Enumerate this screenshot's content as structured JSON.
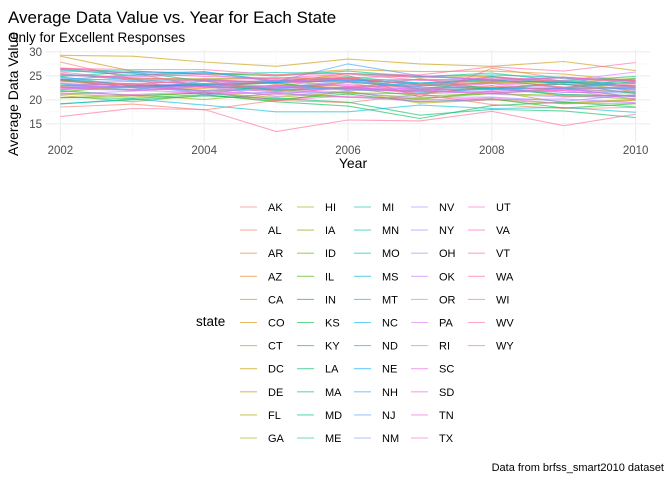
{
  "chart_data": {
    "type": "line",
    "title": "Average Data Value vs. Year for Each State",
    "subtitle": "Only for Excellent Responses",
    "xlabel": "Year",
    "ylabel": "Average Data Value",
    "caption": "Data from brfss_smart2010 dataset",
    "legend_title": "state",
    "legend_position": "bottom",
    "grid": true,
    "xlim": [
      2001.8,
      2010.2
    ],
    "ylim": [
      11.2,
      30.4
    ],
    "x_ticks": [
      2002,
      2004,
      2006,
      2008,
      2010
    ],
    "y_ticks": [
      15,
      20,
      25,
      30
    ],
    "x": [
      2002,
      2003,
      2004,
      2005,
      2006,
      2007,
      2008,
      2009,
      2010
    ],
    "series": [
      {
        "name": "AK",
        "color": "#f8766d",
        "values": [
          27.9,
          24.4,
          23.0,
          23.9,
          25.1,
          20.6,
          26.6,
          24.4,
          24.2
        ]
      },
      {
        "name": "AL",
        "color": "#f57962",
        "values": [
          18.5,
          19.1,
          17.9,
          19.9,
          19.4,
          21.2,
          19.0,
          18.2,
          18.4
        ]
      },
      {
        "name": "AR",
        "color": "#ef7f43",
        "values": [
          24.1,
          24.4,
          21.1,
          23.2,
          22.4,
          24.4,
          22.2,
          23.7,
          22.5
        ]
      },
      {
        "name": "AZ",
        "color": "#e8852a",
        "values": [
          24.1,
          23.3,
          21.8,
          22.4,
          23.8,
          22.2,
          23.0,
          20.7,
          21.0
        ]
      },
      {
        "name": "CA",
        "color": "#e18a00",
        "values": [
          22.7,
          22.0,
          22.4,
          23.0,
          22.9,
          22.9,
          23.5,
          23.2,
          23.0
        ]
      },
      {
        "name": "CO",
        "color": "#d89000",
        "values": [
          26.6,
          25.6,
          22.8,
          23.6,
          25.5,
          24.6,
          24.9,
          23.7,
          23.4
        ]
      },
      {
        "name": "CT",
        "color": "#cf9400",
        "values": [
          29.1,
          26.0,
          25.3,
          25.2,
          26.3,
          25.9,
          26.0,
          25.4,
          23.9
        ]
      },
      {
        "name": "DC",
        "color": "#c49a00",
        "values": [
          29.3,
          29.1,
          27.9,
          27.0,
          28.5,
          27.5,
          27.0,
          28.0,
          26.1
        ]
      },
      {
        "name": "DE",
        "color": "#b79f00",
        "values": [
          20.9,
          19.6,
          21.0,
          19.8,
          21.8,
          19.3,
          20.0,
          19.2,
          19.9
        ]
      },
      {
        "name": "FL",
        "color": "#aaa400",
        "values": [
          23.0,
          23.4,
          22.6,
          22.9,
          24.5,
          22.3,
          23.8,
          24.0,
          21.7
        ]
      },
      {
        "name": "GA",
        "color": "#9ca700",
        "values": [
          21.2,
          20.6,
          21.5,
          20.5,
          21.6,
          20.1,
          21.8,
          19.4,
          20.1
        ]
      },
      {
        "name": "HI",
        "color": "#8cab00",
        "values": [
          25.2,
          24.5,
          24.4,
          24.6,
          24.5,
          23.2,
          23.6,
          23.6,
          24.5
        ]
      },
      {
        "name": "IA",
        "color": "#7aae00",
        "values": [
          20.4,
          21.0,
          20.1,
          21.3,
          20.5,
          20.3,
          21.3,
          20.9,
          20.2
        ]
      },
      {
        "name": "ID",
        "color": "#64b200",
        "values": [
          24.0,
          22.6,
          23.4,
          22.1,
          21.4,
          21.3,
          22.6,
          21.1,
          20.9
        ]
      },
      {
        "name": "IL",
        "color": "#46b600",
        "values": [
          21.7,
          22.8,
          23.0,
          22.0,
          22.4,
          20.8,
          21.3,
          22.4,
          21.5
        ]
      },
      {
        "name": "IN",
        "color": "#00b81f",
        "values": [
          21.9,
          20.9,
          21.4,
          20.1,
          21.2,
          19.6,
          20.2,
          18.3,
          19.2
        ]
      },
      {
        "name": "KS",
        "color": "#00ba38",
        "values": [
          24.2,
          22.6,
          23.1,
          23.5,
          22.1,
          22.0,
          22.5,
          23.3,
          21.3
        ]
      },
      {
        "name": "KY",
        "color": "#00bc4f",
        "values": [
          20.5,
          20.3,
          21.1,
          19.6,
          18.7,
          16.1,
          18.8,
          19.5,
          18.5
        ]
      },
      {
        "name": "LA",
        "color": "#00be67",
        "values": [
          19.2,
          20.0,
          20.8,
          20.3,
          19.5,
          16.8,
          18.0,
          17.7,
          16.3
        ]
      },
      {
        "name": "MA",
        "color": "#00bf7d",
        "values": [
          26.3,
          25.1,
          25.6,
          25.0,
          26.0,
          24.8,
          25.6,
          23.9,
          24.9
        ]
      },
      {
        "name": "MD",
        "color": "#00c08b",
        "values": [
          24.9,
          25.8,
          23.9,
          23.6,
          24.8,
          23.5,
          24.3,
          22.5,
          23.8
        ]
      },
      {
        "name": "ME",
        "color": "#00c19f",
        "values": [
          24.8,
          22.9,
          23.2,
          24.2,
          24.1,
          24.2,
          24.1,
          23.6,
          23.5
        ]
      },
      {
        "name": "MI",
        "color": "#00c1af",
        "values": [
          22.6,
          22.8,
          22.0,
          22.7,
          22.4,
          23.5,
          22.5,
          22.4,
          20.6
        ]
      },
      {
        "name": "MN",
        "color": "#00c0bd",
        "values": [
          26.3,
          26.0,
          25.4,
          25.7,
          25.5,
          24.9,
          25.2,
          24.7,
          23.9
        ]
      },
      {
        "name": "MO",
        "color": "#00bfc4",
        "values": [
          23.3,
          22.1,
          23.9,
          22.0,
          22.6,
          21.6,
          22.3,
          21.1,
          20.7
        ]
      },
      {
        "name": "MS",
        "color": "#00bcd8",
        "values": [
          19.1,
          20.2,
          18.9,
          17.5,
          17.5,
          18.9,
          18.2,
          18.4,
          17.4
        ]
      },
      {
        "name": "MT",
        "color": "#00b9e3",
        "values": [
          24.2,
          25.2,
          25.9,
          24.0,
          24.3,
          23.1,
          22.3,
          22.5,
          24.4
        ]
      },
      {
        "name": "NC",
        "color": "#00b5ee",
        "values": [
          22.1,
          23.0,
          22.8,
          22.2,
          23.7,
          22.6,
          22.5,
          22.4,
          22.3
        ]
      },
      {
        "name": "ND",
        "color": "#00b0f6",
        "values": [
          25.5,
          24.1,
          24.1,
          23.7,
          23.9,
          22.8,
          24.9,
          23.2,
          22.1
        ]
      },
      {
        "name": "NE",
        "color": "#00a9ff",
        "values": [
          24.4,
          23.0,
          23.2,
          23.6,
          24.1,
          23.5,
          24.0,
          23.7,
          22.9
        ]
      },
      {
        "name": "NH",
        "color": "#35a2ff",
        "values": [
          26.0,
          25.7,
          25.8,
          23.8,
          27.5,
          25.0,
          24.1,
          24.6,
          22.6
        ]
      },
      {
        "name": "NJ",
        "color": "#619cff",
        "values": [
          23.4,
          22.5,
          21.8,
          22.1,
          22.6,
          21.6,
          22.2,
          21.6,
          21.4
        ]
      },
      {
        "name": "NM",
        "color": "#7997ff",
        "values": [
          24.6,
          23.9,
          23.4,
          22.5,
          24.1,
          22.3,
          22.1,
          23.4,
          22.7
        ]
      },
      {
        "name": "NV",
        "color": "#8f91ff",
        "values": [
          23.0,
          23.4,
          21.1,
          21.6,
          21.4,
          20.5,
          20.6,
          19.7,
          21.1
        ]
      },
      {
        "name": "NY",
        "color": "#a58aff",
        "values": [
          22.9,
          22.6,
          22.8,
          22.4,
          22.6,
          22.3,
          22.1,
          22.5,
          22.5
        ]
      },
      {
        "name": "OH",
        "color": "#b385ff",
        "values": [
          21.2,
          21.8,
          22.8,
          20.7,
          22.0,
          21.9,
          21.2,
          20.6,
          20.8
        ]
      },
      {
        "name": "OK",
        "color": "#c77cff",
        "values": [
          22.3,
          22.0,
          21.5,
          21.4,
          20.6,
          19.7,
          20.0,
          20.2,
          19.4
        ]
      },
      {
        "name": "OR",
        "color": "#d277ff",
        "values": [
          25.1,
          24.8,
          25.3,
          23.9,
          24.2,
          24.1,
          24.6,
          24.0,
          25.8
        ]
      },
      {
        "name": "PA",
        "color": "#df70f8",
        "values": [
          23.0,
          22.5,
          22.9,
          22.8,
          22.5,
          22.1,
          21.4,
          22.0,
          21.8
        ]
      },
      {
        "name": "RI",
        "color": "#e76bf3",
        "values": [
          23.4,
          23.1,
          23.4,
          22.8,
          23.2,
          22.1,
          23.4,
          21.5,
          21.8
        ]
      },
      {
        "name": "SC",
        "color": "#ef67eb",
        "values": [
          22.3,
          22.9,
          21.9,
          21.0,
          22.8,
          21.2,
          21.8,
          22.3,
          20.6
        ]
      },
      {
        "name": "SD",
        "color": "#f564e3",
        "values": [
          23.7,
          23.8,
          23.4,
          24.0,
          22.8,
          22.9,
          23.4,
          22.6,
          22.5
        ]
      },
      {
        "name": "TN",
        "color": "#fa62db",
        "values": [
          21.4,
          21.1,
          21.7,
          19.9,
          20.8,
          20.0,
          20.4,
          19.2,
          19.3
        ]
      },
      {
        "name": "TX",
        "color": "#fd61d1",
        "values": [
          22.6,
          22.1,
          22.8,
          21.6,
          22.3,
          21.8,
          21.6,
          22.0,
          20.2
        ]
      },
      {
        "name": "UT",
        "color": "#ff61c9",
        "values": [
          25.8,
          24.3,
          24.1,
          23.8,
          24.6,
          25.0,
          24.2,
          24.7,
          23.6
        ]
      },
      {
        "name": "VA",
        "color": "#ff62bc",
        "values": [
          26.6,
          25.5,
          24.9,
          24.5,
          25.4,
          24.1,
          23.7,
          24.7,
          24.0
        ]
      },
      {
        "name": "VT",
        "color": "#ff64b0",
        "values": [
          26.6,
          26.3,
          26.3,
          25.2,
          25.5,
          25.2,
          26.9,
          26.0,
          27.8
        ]
      },
      {
        "name": "WA",
        "color": "#ff67a4",
        "values": [
          25.3,
          24.6,
          24.2,
          24.5,
          24.5,
          23.2,
          24.6,
          23.8,
          24.0
        ]
      },
      {
        "name": "WI",
        "color": "#ff6c91",
        "values": [
          24.0,
          23.1,
          24.4,
          23.3,
          24.6,
          23.0,
          24.1,
          22.7,
          23.3
        ]
      },
      {
        "name": "WV",
        "color": "#ff6a98",
        "values": [
          16.5,
          18.2,
          18.0,
          13.4,
          15.8,
          15.6,
          17.6,
          14.6,
          17.0
        ]
      },
      {
        "name": "WY",
        "color": "#fc717f",
        "values": [
          22.9,
          23.3,
          24.0,
          21.7,
          23.6,
          21.2,
          22.9,
          22.1,
          22.8
        ]
      }
    ]
  }
}
